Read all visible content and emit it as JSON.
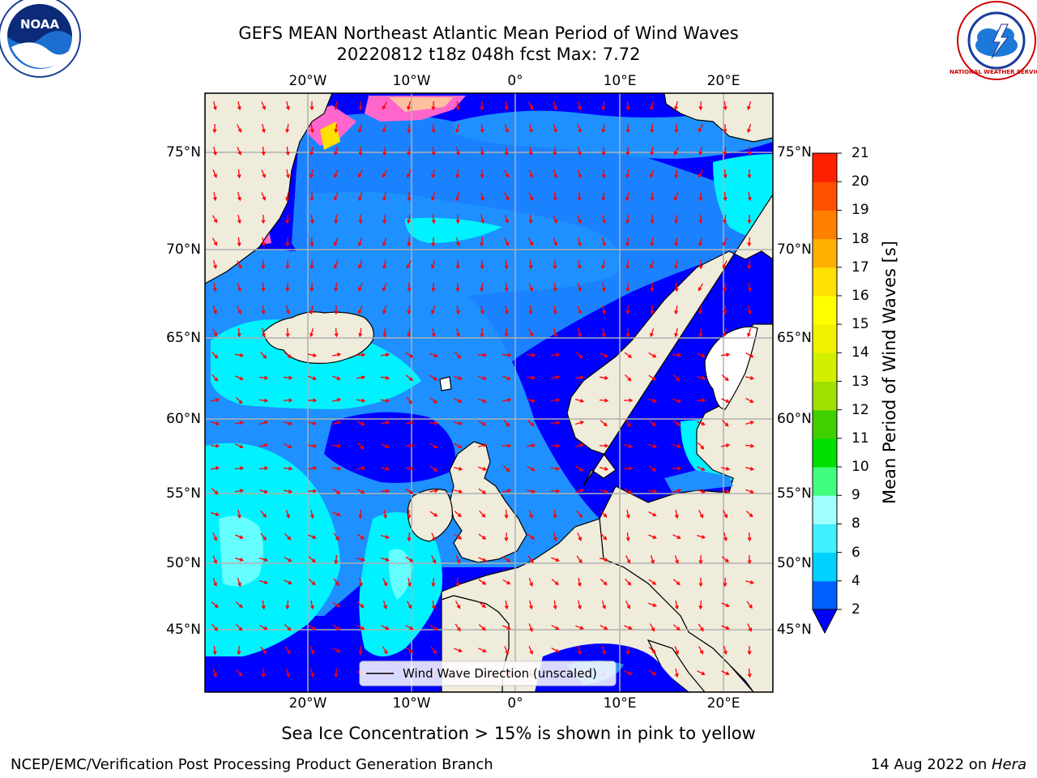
{
  "title": {
    "line1": "GEFS MEAN Northeast Atlantic Mean Period of Wind Waves",
    "line2": "20220812 t18z 048h fcst   Max: 7.72"
  },
  "logos": {
    "noaa_text": "NOAA",
    "nws_text": "NATIONAL WEATHER SERVICE"
  },
  "map": {
    "lon_ticks": [
      "20°W",
      "10°W",
      "0°",
      "10°E",
      "20°E"
    ],
    "lat_ticks": [
      "75°N",
      "70°N",
      "65°N",
      "60°N",
      "55°N",
      "50°N",
      "45°N"
    ],
    "legend_label": "Wind Wave Direction (unscaled)",
    "colors": {
      "land": "#efecdc",
      "ocean_2_4": "#0000ff",
      "ocean_4_6": "#1e90ff",
      "ocean_6_8": "#00f2ff",
      "ocean_8_9": "#66ffff",
      "arrow": "#ff0000"
    }
  },
  "colorbar": {
    "label": "Mean Period of Wind Waves [s]",
    "ticks": [
      "2",
      "4",
      "6",
      "8",
      "9",
      "10",
      "11",
      "12",
      "13",
      "14",
      "15",
      "16",
      "17",
      "18",
      "19",
      "20",
      "21"
    ],
    "colors": [
      "#0060ff",
      "#00d0ff",
      "#40f0ff",
      "#a0ffff",
      "#40ff80",
      "#00e000",
      "#40d000",
      "#a0e000",
      "#d0f000",
      "#f0f000",
      "#ffff00",
      "#ffe000",
      "#ffb000",
      "#ff8000",
      "#ff5000",
      "#ff2000"
    ],
    "extend_color": "#0000ff"
  },
  "subtitle": "Sea Ice Concentration > 15% is shown in pink to yellow",
  "footer": {
    "left": "NCEP/EMC/Verification Post Processing Product Generation Branch",
    "right_prefix": "14 Aug 2022 on ",
    "right_host": "Hera"
  }
}
